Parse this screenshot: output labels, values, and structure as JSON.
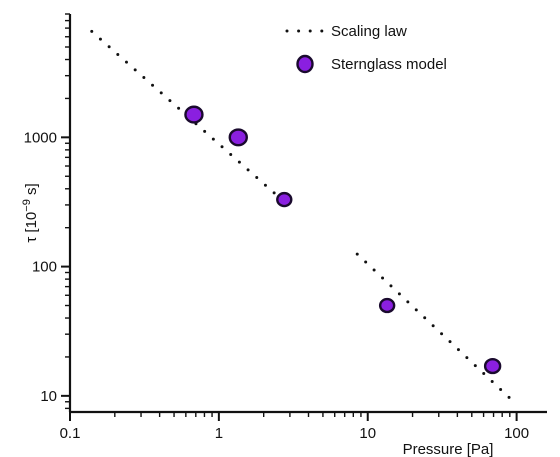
{
  "chart_data": {
    "type": "scatter",
    "xlabel": "Pressure [Pa]",
    "ylabel": {
      "base": "τ [10",
      "exponent": "−9",
      "unit": " s]"
    },
    "xscale": "log",
    "yscale": "log",
    "xlim": [
      0.1,
      160
    ],
    "ylim": [
      7.5,
      9000
    ],
    "x_ticks": [
      {
        "value": 0.1,
        "label": "0.1"
      },
      {
        "value": 1,
        "label": "1"
      },
      {
        "value": 10,
        "label": "10"
      },
      {
        "value": 100,
        "label": "100"
      }
    ],
    "y_ticks": [
      {
        "value": 10,
        "label": "10"
      },
      {
        "value": 100,
        "label": "100"
      },
      {
        "value": 1000,
        "label": "1000"
      }
    ],
    "grid": false,
    "legend_position": "top-right",
    "series": [
      {
        "name": "Scaling law",
        "kind": "dotted-line",
        "color": "#111111",
        "segments": [
          {
            "x": [
              0.14,
              2.9
            ],
            "y": [
              6600,
              300
            ]
          },
          {
            "x": [
              8.5,
              90
            ],
            "y": [
              125,
              9.6
            ]
          }
        ]
      },
      {
        "name": "Sternglass model",
        "kind": "markers",
        "color": "#8a1fe0",
        "edge_color": "#1a0a2e",
        "x": [
          0.68,
          1.35,
          2.75,
          13.5,
          69
        ],
        "y": [
          1500,
          1000,
          330,
          50,
          17
        ],
        "sizes": [
          8.5,
          8.5,
          7,
          7,
          7.5
        ]
      }
    ]
  }
}
